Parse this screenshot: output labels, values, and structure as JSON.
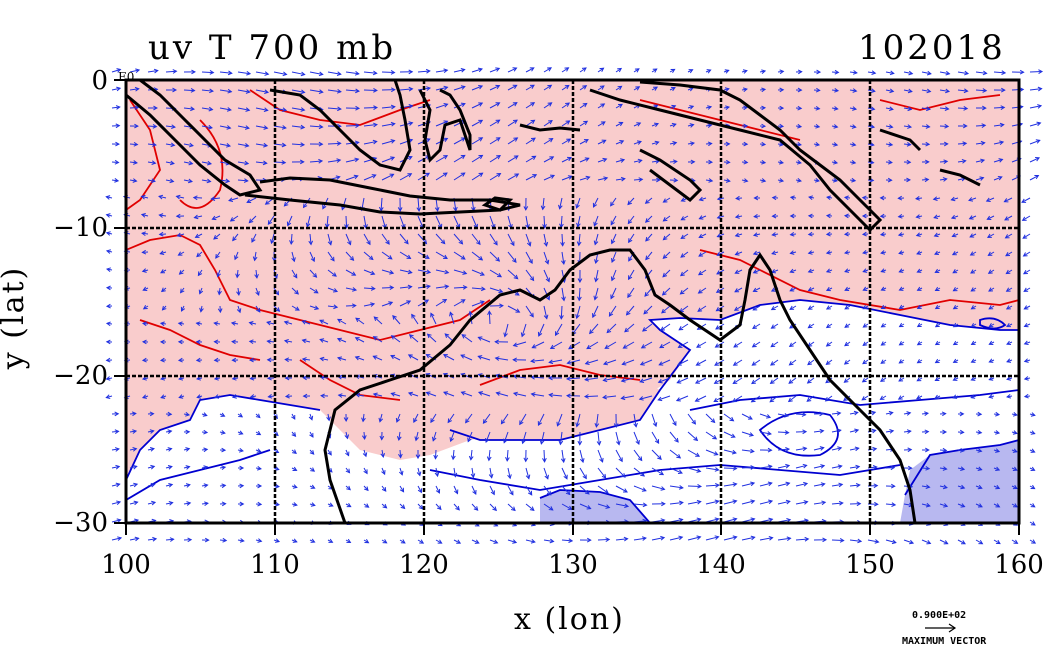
{
  "title": "uv T 700 mb",
  "datecode": "102018",
  "corner_note": "E0",
  "x_axis": {
    "label": "x (lon)",
    "ticks": [
      "100",
      "110",
      "120",
      "130",
      "140",
      "150",
      "160"
    ],
    "range": [
      100,
      160
    ]
  },
  "y_axis": {
    "label": "y (lat)",
    "ticks": [
      "0",
      "−10",
      "−20",
      "−30"
    ],
    "range": [
      -30,
      0
    ]
  },
  "vector_legend": {
    "scale": "0.900E+02",
    "label": "MAXIMUM VECTOR"
  },
  "colors": {
    "warm_fill": "#f9cccc",
    "cool_fill": "#ffffff",
    "cold_fill": "#b8b8f0",
    "warm_contour": "#e00000",
    "cool_contour": "#0000d0",
    "vector": "#2030e0",
    "coast": "#000000",
    "grid": "#000000"
  },
  "gridlines": {
    "lon": [
      110,
      120,
      130,
      140,
      150
    ],
    "lat": [
      -10,
      -20
    ]
  }
}
